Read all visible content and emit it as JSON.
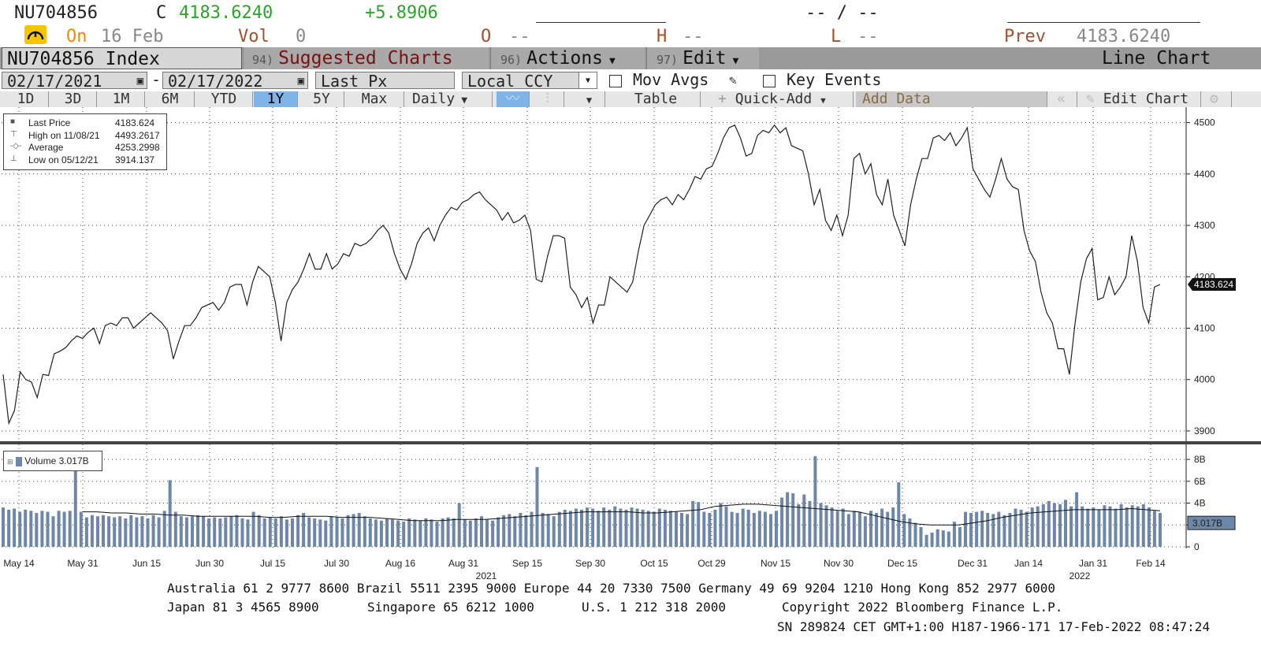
{
  "quote": {
    "ticker": "NU704856",
    "c_label": "C",
    "price": "4183.6240",
    "change": "+5.8906",
    "bidask": "-- / --",
    "on_label": "On",
    "on_date": "16 Feb",
    "vol_label": "Vol",
    "vol_value": "0",
    "o_label": "O",
    "o_value": "--",
    "h_label": "H",
    "h_value": "--",
    "l_label": "L",
    "l_value": "--",
    "prev_label": "Prev",
    "prev_value": "4183.6240"
  },
  "titlebar": {
    "security": "NU704856 Index",
    "suggested_num": "94)",
    "suggested_label": "Suggested Charts",
    "actions_num": "96)",
    "actions_label": "Actions",
    "edit_num": "97)",
    "edit_label": "Edit",
    "chart_type": "Line Chart"
  },
  "settings": {
    "start_date": "02/17/2021",
    "dash": "-",
    "end_date": "02/17/2022",
    "field": "Last Px",
    "currency": "Local CCY",
    "mov_avgs": "Mov Avgs",
    "key_events": "Key Events"
  },
  "toolbar": {
    "ranges": [
      "1D",
      "3D",
      "1M",
      "6M",
      "YTD",
      "1Y",
      "5Y",
      "Max"
    ],
    "selected_range": "1Y",
    "frequency": "Daily",
    "table": "Table",
    "quick_add": "Quick-Add",
    "add_data": "Add Data",
    "edit_chart": "Edit Chart"
  },
  "legend": {
    "rows": [
      {
        "label": "Last Price",
        "value": "4183.624"
      },
      {
        "label": "High on 11/08/21",
        "value": "4493.2617"
      },
      {
        "label": "Average",
        "value": "4253.2998"
      },
      {
        "label": "Low on 05/12/21",
        "value": "3914.137"
      }
    ]
  },
  "volume_legend": {
    "label": "Volume 3.017B"
  },
  "colors": {
    "line": "#222222",
    "volume": "#6d87a8",
    "selected": "#7fb4e8",
    "green": "#2aa52a"
  },
  "chart_data": [
    {
      "type": "line",
      "series": [
        {
          "name": "Last Price",
          "values": [
            4010,
            3915,
            3940,
            4015,
            4000,
            3995,
            3965,
            4010,
            4008,
            4050,
            4055,
            4062,
            4075,
            4085,
            4080,
            4092,
            4100,
            4070,
            4105,
            4110,
            4105,
            4120,
            4120,
            4100,
            4110,
            4120,
            4130,
            4120,
            4110,
            4095,
            4040,
            4075,
            4105,
            4105,
            4120,
            4140,
            4145,
            4150,
            4135,
            4150,
            4180,
            4185,
            4185,
            4145,
            4190,
            4220,
            4210,
            4200,
            4150,
            4075,
            4150,
            4175,
            4190,
            4215,
            4245,
            4215,
            4215,
            4245,
            4215,
            4225,
            4245,
            4240,
            4265,
            4260,
            4265,
            4275,
            4290,
            4300,
            4285,
            4245,
            4215,
            4195,
            4225,
            4265,
            4285,
            4295,
            4270,
            4300,
            4320,
            4335,
            4330,
            4345,
            4350,
            4360,
            4365,
            4350,
            4340,
            4330,
            4310,
            4325,
            4305,
            4310,
            4320,
            4290,
            4195,
            4190,
            4240,
            4280,
            4280,
            4275,
            4180,
            4165,
            4140,
            4160,
            4110,
            4145,
            4145,
            4200,
            4190,
            4180,
            4170,
            4190,
            4250,
            4300,
            4320,
            4340,
            4350,
            4355,
            4340,
            4360,
            4350,
            4370,
            4395,
            4390,
            4410,
            4415,
            4440,
            4470,
            4490,
            4495,
            4470,
            4435,
            4440,
            4475,
            4485,
            4480,
            4495,
            4480,
            4490,
            4455,
            4450,
            4445,
            4400,
            4340,
            4370,
            4310,
            4290,
            4320,
            4280,
            4320,
            4430,
            4440,
            4400,
            4420,
            4360,
            4340,
            4390,
            4320,
            4290,
            4260,
            4340,
            4390,
            4430,
            4430,
            4470,
            4475,
            4465,
            4480,
            4455,
            4470,
            4490,
            4410,
            4390,
            4370,
            4355,
            4390,
            4430,
            4390,
            4375,
            4370,
            4290,
            4250,
            4230,
            4170,
            4130,
            4110,
            4060,
            4060,
            4010,
            4110,
            4190,
            4235,
            4255,
            4155,
            4160,
            4200,
            4165,
            4180,
            4200,
            4280,
            4230,
            4140,
            4110,
            4180,
            4185
          ]
        }
      ],
      "ylim": [
        3880,
        4530
      ],
      "y_ticks": [
        3900,
        4000,
        4100,
        4200,
        4300,
        4400,
        4500
      ],
      "last_label": "4183.624",
      "x_labels": [
        "May 14",
        "May 31",
        "Jun 15",
        "Jun 30",
        "Jul 15",
        "Jul 30",
        "Aug 16",
        "Aug 31",
        "Sep 15",
        "Sep 30",
        "Oct 15",
        "Oct 29",
        "Nov 15",
        "Nov 30",
        "Dec 15",
        "Dec 31",
        "Jan 14",
        "Jan 31",
        "Feb 14"
      ],
      "year_labels": [
        "2021",
        "2022"
      ],
      "grid": true
    },
    {
      "type": "bar",
      "series": [
        {
          "name": "Volume",
          "values": [
            3.6,
            3.4,
            3.5,
            3.2,
            3.4,
            3.3,
            3.1,
            3.3,
            3.2,
            2.8,
            3.3,
            3.2,
            3.3,
            7.2,
            3.2,
            2.7,
            2.9,
            2.8,
            2.9,
            2.8,
            2.7,
            2.8,
            2.6,
            2.9,
            2.7,
            2.8,
            2.6,
            2.9,
            2.7,
            3.3,
            6.1,
            3.2,
            2.8,
            2.7,
            2.8,
            2.9,
            2.8,
            2.6,
            2.7,
            2.6,
            2.7,
            2.8,
            2.9,
            2.6,
            2.5,
            3.2,
            2.9,
            2.6,
            2.7,
            2.6,
            2.8,
            2.5,
            2.6,
            2.9,
            3.1,
            2.7,
            2.6,
            2.5,
            2.4,
            2.8,
            2.7,
            2.6,
            2.9,
            3.0,
            3.1,
            2.8,
            2.6,
            2.5,
            2.4,
            2.6,
            2.5,
            2.4,
            2.3,
            2.6,
            2.5,
            2.4,
            2.6,
            2.5,
            2.3,
            2.6,
            2.7,
            2.6,
            4.0,
            2.5,
            2.4,
            2.6,
            2.8,
            2.5,
            2.4,
            2.7,
            2.9,
            3.0,
            2.8,
            3.1,
            2.9,
            3.2,
            7.3,
            3.1,
            3.0,
            2.8,
            3.2,
            3.4,
            3.3,
            3.5,
            3.4,
            3.6,
            3.5,
            3.3,
            3.6,
            3.4,
            3.7,
            3.5,
            3.4,
            3.6,
            3.5,
            3.4,
            3.3,
            3.2,
            3.5,
            3.4,
            3.3,
            3.2,
            3.1,
            3.0,
            4.2,
            4.1,
            3.2,
            3.1,
            3.4,
            4.0,
            3.7,
            3.2,
            3.1,
            3.5,
            3.4,
            3.1,
            3.3,
            3.2,
            3.0,
            3.3,
            4.5,
            5.0,
            4.9,
            3.9,
            4.8,
            4.2,
            8.3,
            4.0,
            3.8,
            3.6,
            3.3,
            3.5,
            3.0,
            3.3,
            3.2,
            2.8,
            3.3,
            3.1,
            3.5,
            3.2,
            3.6,
            5.9,
            3.0,
            2.6,
            2.2,
            1.8,
            1.1,
            1.3,
            1.6,
            1.5,
            1.4,
            2.3,
            1.8,
            3.2,
            3.1,
            3.2,
            3.3,
            3.1,
            3.0,
            3.2,
            2.9,
            3.1,
            3.5,
            3.4,
            3.2,
            3.6,
            3.7,
            3.9,
            4.2,
            4.0,
            3.9,
            4.3,
            3.7,
            5.0,
            3.7,
            3.5,
            3.6,
            3.4,
            3.8,
            3.7,
            3.5,
            3.9,
            3.6,
            3.8,
            3.7,
            3.9,
            3.6,
            3.3,
            3.1
          ]
        }
      ],
      "moving_average": [
        3.2,
        3.2,
        3.1,
        3.1,
        3.0,
        3.0,
        2.9,
        2.9,
        2.8,
        2.8,
        2.8,
        2.8,
        2.8,
        2.7,
        2.7,
        2.8,
        2.8,
        2.8,
        2.7,
        2.7,
        2.7,
        2.6,
        2.5,
        2.4,
        2.4,
        2.4,
        2.5,
        2.5,
        2.5,
        2.6,
        2.7,
        2.8,
        2.9,
        3.0,
        3.1,
        3.2,
        3.2,
        3.2,
        3.2,
        3.1,
        3.1,
        3.2,
        3.3,
        3.4,
        3.7,
        3.8,
        3.9,
        3.9,
        3.8,
        3.7,
        3.6,
        3.5,
        3.4,
        3.3,
        3.2,
        2.9,
        2.6,
        2.3,
        2.1,
        2.0,
        2.0,
        2.0,
        2.2,
        2.4,
        2.7,
        2.9,
        3.1,
        3.2,
        3.3,
        3.4,
        3.4,
        3.4,
        3.4,
        3.5,
        3.4,
        3.3
      ],
      "y_ticks": [
        "0",
        "2B",
        "4B",
        "6B",
        "8B"
      ],
      "ylim": [
        0,
        8.8
      ],
      "last_label": "3.017B",
      "grid": true
    }
  ],
  "footer": {
    "line1": "Australia 61 2 9777 8600 Brazil 5511 2395 9000 Europe 44 20 7330 7500 Germany 49 69 9204 1210 Hong Kong 852 2977 6000",
    "line2a": "Japan 81 3 4565 8900",
    "line2b": "Singapore 65 6212 1000",
    "line2c": "U.S. 1 212 318 2000",
    "line2d": "Copyright 2022 Bloomberg Finance L.P.",
    "line3": "SN 289824 CET  GMT+1:00 H187-1966-171 17-Feb-2022 08:47:24"
  }
}
